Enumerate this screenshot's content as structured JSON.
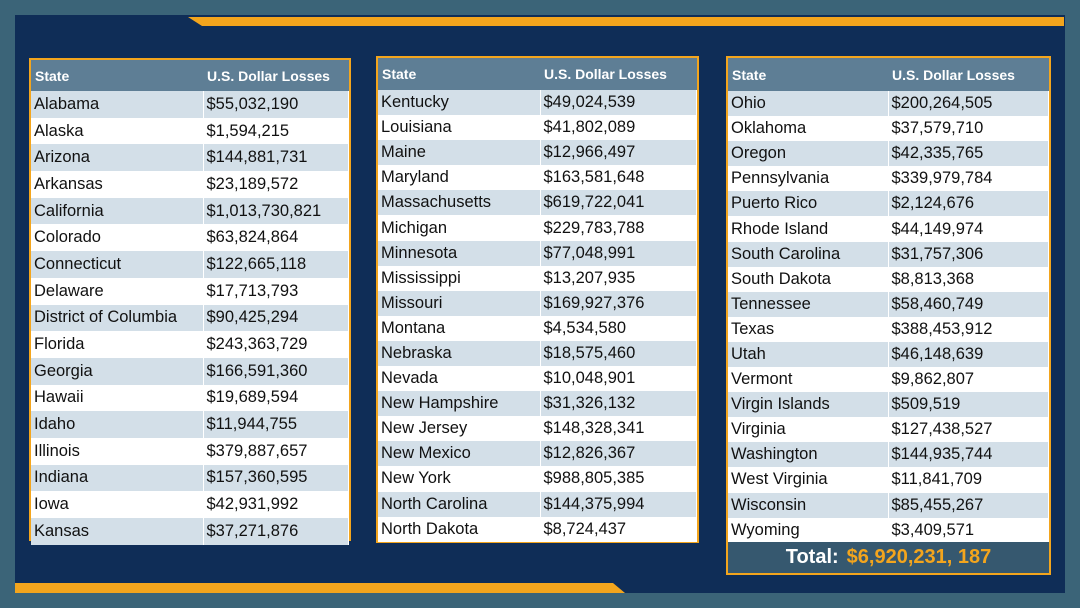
{
  "colors": {
    "background": "#0f2d57",
    "frame": "#3b6478",
    "accent": "#f3a51d",
    "header": "#5e7e95",
    "stripe": "#d3dfe8"
  },
  "headers": {
    "state": "State",
    "losses": "U.S. Dollar Losses"
  },
  "table1": [
    [
      "Alabama",
      "$55,032,190"
    ],
    [
      "Alaska",
      "$1,594,215"
    ],
    [
      "Arizona",
      "$144,881,731"
    ],
    [
      "Arkansas",
      "$23,189,572"
    ],
    [
      "California",
      "$1,013,730,821"
    ],
    [
      "Colorado",
      "$63,824,864"
    ],
    [
      "Connecticut",
      "$122,665,118"
    ],
    [
      "Delaware",
      "$17,713,793"
    ],
    [
      "District of Columbia",
      "$90,425,294"
    ],
    [
      "Florida",
      "$243,363,729"
    ],
    [
      "Georgia",
      "$166,591,360"
    ],
    [
      "Hawaii",
      "$19,689,594"
    ],
    [
      "Idaho",
      "$11,944,755"
    ],
    [
      "Illinois",
      "$379,887,657"
    ],
    [
      "Indiana",
      "$157,360,595"
    ],
    [
      "Iowa",
      "$42,931,992"
    ],
    [
      "Kansas",
      "$37,271,876"
    ]
  ],
  "table2": [
    [
      "Kentucky",
      "$49,024,539"
    ],
    [
      "Louisiana",
      "$41,802,089"
    ],
    [
      "Maine",
      "$12,966,497"
    ],
    [
      "Maryland",
      "$163,581,648"
    ],
    [
      "Massachusetts",
      "$619,722,041"
    ],
    [
      "Michigan",
      "$229,783,788"
    ],
    [
      "Minnesota",
      "$77,048,991"
    ],
    [
      "Mississippi",
      "$13,207,935"
    ],
    [
      "Missouri",
      "$169,927,376"
    ],
    [
      "Montana",
      "$4,534,580"
    ],
    [
      "Nebraska",
      "$18,575,460"
    ],
    [
      "Nevada",
      "$10,048,901"
    ],
    [
      "New Hampshire",
      "$31,326,132"
    ],
    [
      "New Jersey",
      "$148,328,341"
    ],
    [
      "New Mexico",
      "$12,826,367"
    ],
    [
      "New York",
      "$988,805,385"
    ],
    [
      "North Carolina",
      "$144,375,994"
    ],
    [
      "North Dakota",
      "$8,724,437"
    ]
  ],
  "table3": [
    [
      "Ohio",
      "$200,264,505"
    ],
    [
      "Oklahoma",
      "$37,579,710"
    ],
    [
      "Oregon",
      "$42,335,765"
    ],
    [
      "Pennsylvania",
      "$339,979,784"
    ],
    [
      "Puerto Rico",
      "$2,124,676"
    ],
    [
      "Rhode Island",
      "$44,149,974"
    ],
    [
      "South Carolina",
      "$31,757,306"
    ],
    [
      "South Dakota",
      "$8,813,368"
    ],
    [
      "Tennessee",
      "$58,460,749"
    ],
    [
      "Texas",
      "$388,453,912"
    ],
    [
      "Utah",
      "$46,148,639"
    ],
    [
      "Vermont",
      "$9,862,807"
    ],
    [
      "Virgin Islands",
      "$509,519"
    ],
    [
      "Virginia",
      "$127,438,527"
    ],
    [
      "Washington",
      "$144,935,744"
    ],
    [
      "West Virginia",
      "$11,841,709"
    ],
    [
      "Wisconsin",
      "$85,455,267"
    ],
    [
      "Wyoming",
      "$3,409,571"
    ]
  ],
  "total": {
    "label": "Total:",
    "value": "$6,920,231, 187"
  }
}
